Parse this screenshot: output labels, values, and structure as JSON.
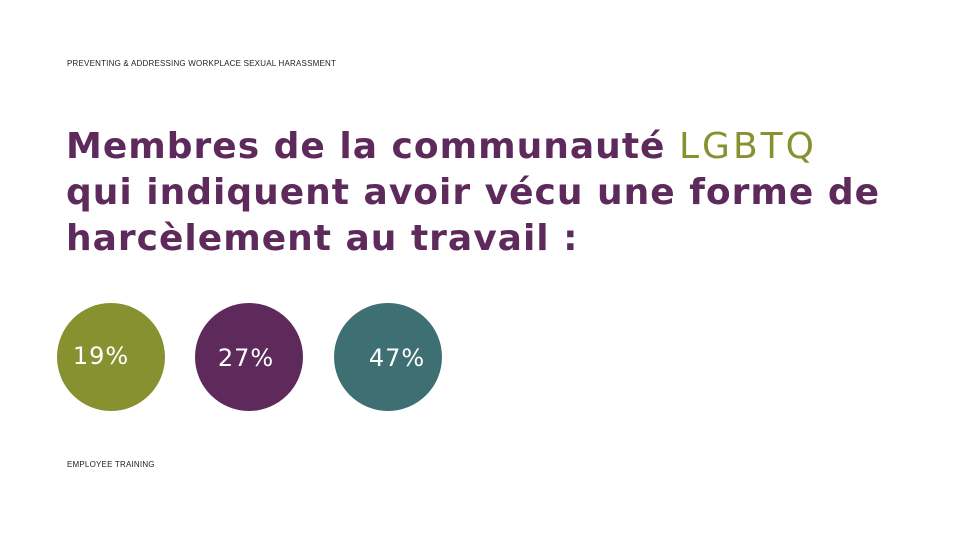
{
  "header": {
    "label": "PREVENTING & ADDRESSING WORKPLACE SEXUAL HARASSMENT"
  },
  "title": {
    "part1": "Membres de la communauté ",
    "highlight": "LGBTQ",
    "part2": " qui indiquent avoir vécu une forme de harcèlement au travail :"
  },
  "stats": [
    {
      "value": "19%",
      "color": "#879130"
    },
    {
      "value": "27%",
      "color": "#5e2a5c"
    },
    {
      "value": "47%",
      "color": "#3d6f73"
    }
  ],
  "footer": {
    "label": "EMPLOYEE TRAINING"
  },
  "colors": {
    "title": "#5e2a5c",
    "highlight": "#879130"
  }
}
